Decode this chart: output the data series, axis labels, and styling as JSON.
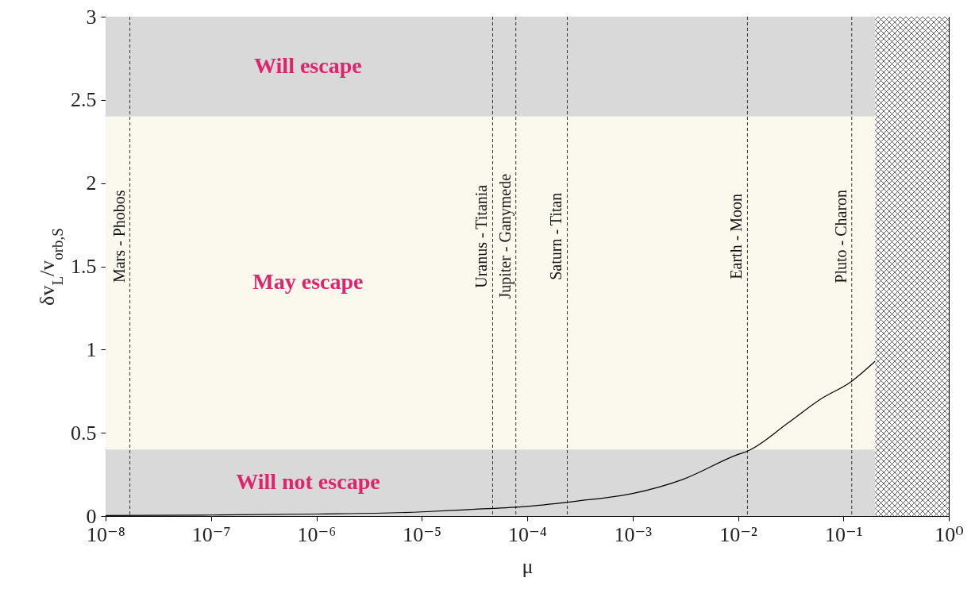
{
  "chart_data": {
    "type": "line",
    "xlabel": "μ",
    "ylabel": "δv$_{L}$/v$_{orb,S}$",
    "log": "x",
    "xlim": [
      1e-08,
      1
    ],
    "ylim": [
      0,
      3
    ],
    "xticks": [
      {
        "value": 1e-08,
        "label": "10⁻⁸"
      },
      {
        "value": 1e-07,
        "label": "10⁻⁷"
      },
      {
        "value": 1e-06,
        "label": "10⁻⁶"
      },
      {
        "value": 1e-05,
        "label": "10⁻⁵"
      },
      {
        "value": 0.0001,
        "label": "10⁻⁴"
      },
      {
        "value": 0.001,
        "label": "10⁻³"
      },
      {
        "value": 0.01,
        "label": "10⁻²"
      },
      {
        "value": 0.1,
        "label": "10⁻¹"
      },
      {
        "value": 1,
        "label": "10⁰"
      }
    ],
    "yticks": [
      0,
      0.5,
      1,
      1.5,
      2,
      2.5,
      3
    ],
    "grid": false,
    "line_style": "solid",
    "marker": "none",
    "series": [
      {
        "color": "#000000",
        "x": [
          1e-08,
          1e-07,
          1e-06,
          1e-05,
          3e-05,
          0.0001,
          0.0003,
          0.001,
          0.003,
          0.01,
          0.0123,
          0.03,
          0.06,
          0.12,
          0.2
        ],
        "values": [
          0.003,
          0.006,
          0.012,
          0.025,
          0.04,
          0.058,
          0.09,
          0.135,
          0.22,
          0.37,
          0.39,
          0.56,
          0.7,
          0.81,
          0.93
        ]
      }
    ],
    "bands": [
      {
        "axis": "y",
        "from": 2.4,
        "to": 3,
        "label": "Will escape",
        "color": "#d9d9d9"
      },
      {
        "axis": "y",
        "from": 0.4,
        "to": 2.4,
        "label": "May escape",
        "color": "#fbf9ee"
      },
      {
        "axis": "y",
        "from": 0,
        "to": 0.4,
        "label": "Will not escape",
        "color": "#d9d9d9"
      },
      {
        "axis": "x",
        "from": 0.2,
        "to": 1,
        "color": "#333333"
      }
    ],
    "ref_lines": [
      {
        "axis": "x",
        "value": 1.7e-08,
        "label": "Mars - Phobos",
        "line_style": "dashed",
        "color": "#333333"
      },
      {
        "axis": "x",
        "value": 4.7e-05,
        "label": "Uranus - Titania",
        "line_style": "dashed",
        "color": "#333333"
      },
      {
        "axis": "x",
        "value": 7.8e-05,
        "label": "Jupiter - Ganymede",
        "line_style": "dashed",
        "color": "#333333"
      },
      {
        "axis": "x",
        "value": 0.00024,
        "label": "Saturn - Titan",
        "line_style": "dashed",
        "color": "#333333"
      },
      {
        "axis": "x",
        "value": 0.0123,
        "label": "Earth - Moon",
        "line_style": "dashed",
        "color": "#333333"
      },
      {
        "axis": "x",
        "value": 0.12,
        "label": "Pluto - Charon",
        "line_style": "dashed",
        "color": "#333333"
      }
    ]
  }
}
